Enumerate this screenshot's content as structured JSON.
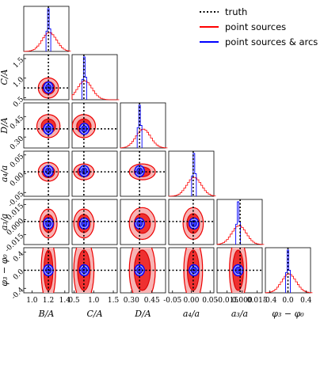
{
  "chart_data": {
    "type": "corner",
    "parameters": [
      {
        "label": "B/A",
        "range": [
          0.9,
          1.45
        ],
        "ticks": [
          "1.0",
          "1.2",
          "1.4"
        ],
        "truth": 1.2
      },
      {
        "label": "C/A",
        "range": [
          0.45,
          1.6
        ],
        "ticks": [
          "0.5",
          "1.0",
          "1.5"
        ],
        "truth": 0.75
      },
      {
        "label": "D/A",
        "range": [
          0.22,
          0.55
        ],
        "ticks": [
          "0.30",
          "0.45"
        ],
        "truth": 0.36
      },
      {
        "label": "a₄/a",
        "range": [
          -0.06,
          0.06
        ],
        "ticks": [
          "-0.05",
          "0.00",
          "0.05"
        ],
        "truth": 0.005
      },
      {
        "label": "a₃/a",
        "range": [
          -0.025,
          0.02
        ],
        "ticks": [
          "-0.015",
          "0.000",
          "0.015"
        ],
        "truth": -0.002
      },
      {
        "label": "φ₃ − φ₀",
        "range": [
          -0.5,
          0.5
        ],
        "ticks": [
          "-0.4",
          "0.0",
          "0.4"
        ],
        "truth": 0.0
      }
    ],
    "ylabels": [
      "C/A",
      "D/A",
      "a₄/a",
      "a₃/a",
      "φ₃ − φ₀"
    ],
    "ytick_labels": [
      [
        "0.5",
        "1.0",
        "1.5"
      ],
      [
        "0.30",
        "0.45"
      ],
      [
        "-0.05",
        "0.00",
        "0.05"
      ],
      [
        "-0.015",
        "0.000",
        "0.015"
      ],
      [
        "-0.4",
        "0.0",
        "0.4"
      ]
    ],
    "series": [
      {
        "name": "truth",
        "color": "#000000",
        "style": "dotted"
      },
      {
        "name": "point sources",
        "color": "#ff0000",
        "style": "filled-contours"
      },
      {
        "name": "point sources & arcs",
        "color": "#0000ff",
        "style": "filled-contours"
      }
    ],
    "red_center": [
      1.2,
      0.75,
      0.38,
      0.005,
      -0.004,
      0.0
    ],
    "blue_center": [
      1.2,
      0.76,
      0.36,
      0.007,
      -0.004,
      0.0
    ],
    "legend_position": "top-right"
  }
}
